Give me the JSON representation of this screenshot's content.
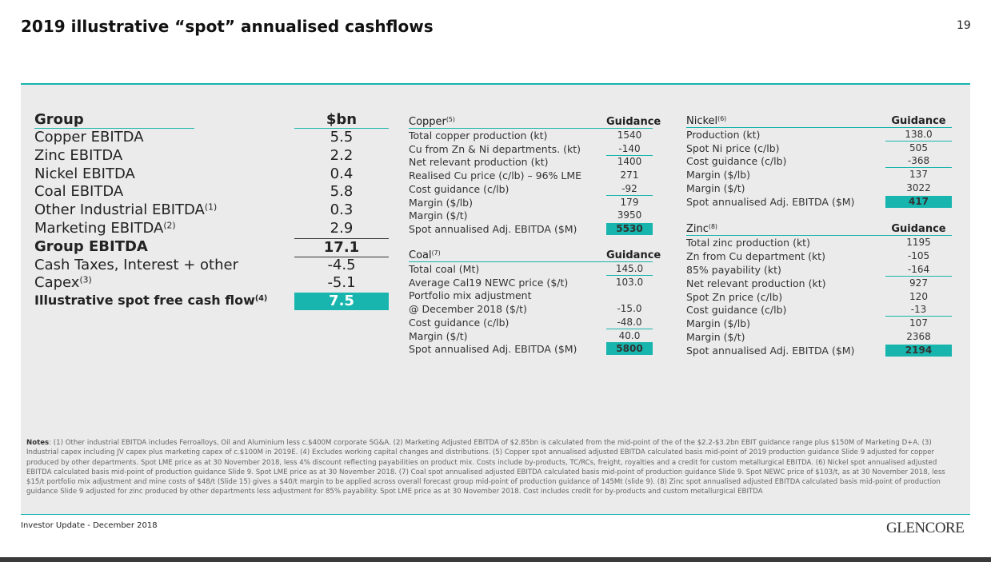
{
  "header": {
    "title": "2019 illustrative “spot” annualised cashflows",
    "page_number": "19"
  },
  "left_table": {
    "header": {
      "label": "Group",
      "value": "$bn"
    },
    "rows": [
      {
        "label": "Copper EBITDA",
        "value": "5.5"
      },
      {
        "label": "Zinc EBITDA",
        "value": "2.2"
      },
      {
        "label": "Nickel EBITDA",
        "value": "0.4"
      },
      {
        "label": "Coal EBITDA",
        "value": "5.8"
      },
      {
        "label": "Other Industrial EBITDA",
        "sup": "(1)",
        "value": "0.3"
      },
      {
        "label": "Marketing EBITDA",
        "sup": "(2)",
        "value": "2.9"
      },
      {
        "label": "Group EBITDA",
        "value": "17.1"
      },
      {
        "label": "Cash Taxes, Interest + other",
        "value": "-4.5"
      },
      {
        "label": "Capex",
        "sup": "(3)",
        "value": "-5.1"
      },
      {
        "label": "Illustrative spot free cash flow",
        "sup": "(4)",
        "value": "7.5"
      }
    ]
  },
  "copper": {
    "title": "Copper",
    "sup": "(5)",
    "column": "Guidance",
    "rows": [
      {
        "label": "Total copper production (kt)",
        "value": "1540"
      },
      {
        "label": "Cu from Zn & Ni departments. (kt)",
        "value": "-140"
      },
      {
        "label": "Net relevant production (kt)",
        "value": "1400"
      },
      {
        "label": "Realised Cu price (c/lb) – 96% LME",
        "value": "271"
      },
      {
        "label": "Cost guidance (c/lb)",
        "value": "-92"
      },
      {
        "label": "Margin ($/lb)",
        "value": "179"
      },
      {
        "label": "Margin ($/t)",
        "value": "3950"
      },
      {
        "label": "Spot annualised Adj. EBITDA ($M)",
        "value": "5530"
      }
    ]
  },
  "coal": {
    "title": "Coal",
    "sup": "(7)",
    "column": "Guidance",
    "rows": [
      {
        "label": "Total coal (Mt)",
        "value": "145.0"
      },
      {
        "label": "Average Cal19 NEWC price ($/t)",
        "value": "103.0"
      },
      {
        "label": "Portfolio mix adjustment"
      },
      {
        "label": "@ December 2018 ($/t)",
        "value": "-15.0"
      },
      {
        "label": "Cost guidance (c/lb)",
        "value": "-48.0"
      },
      {
        "label": "Margin ($/t)",
        "value": "40.0"
      },
      {
        "label": "Spot annualised Adj. EBITDA ($M)",
        "value": "5800"
      }
    ]
  },
  "nickel": {
    "title": "Nickel",
    "sup": "(6)",
    "column": "Guidance",
    "rows": [
      {
        "label": "Production (kt)",
        "value": "138.0"
      },
      {
        "label": "Spot Ni price (c/lb)",
        "value": "505"
      },
      {
        "label": "Cost guidance (c/lb)",
        "value": "-368"
      },
      {
        "label": "Margin ($/lb)",
        "value": "137"
      },
      {
        "label": "Margin ($/t)",
        "value": "3022"
      },
      {
        "label": "Spot annualised Adj. EBITDA ($M)",
        "value": "417"
      }
    ]
  },
  "zinc": {
    "title": "Zinc",
    "sup": "(8)",
    "column": "Guidance",
    "rows": [
      {
        "label": "Total zinc production (kt)",
        "value": "1195"
      },
      {
        "label": "Zn from Cu department (kt)",
        "value": "-105"
      },
      {
        "label": "85% payability (kt)",
        "value": "-164"
      },
      {
        "label": "Net relevant production (kt)",
        "value": "927"
      },
      {
        "label": "Spot Zn price (c/lb)",
        "value": "120"
      },
      {
        "label": "Cost guidance (c/lb)",
        "value": "-13"
      },
      {
        "label": "Margin ($/lb)",
        "value": "107"
      },
      {
        "label": "Margin ($/t)",
        "value": "2368"
      },
      {
        "label": "Spot annualised Adj. EBITDA ($M)",
        "value": "2194"
      }
    ]
  },
  "notes": {
    "label": "Notes",
    "text": ": (1) Other industrial EBITDA includes Ferroalloys, Oil and Aluminium less c.$400M corporate SG&A. (2) Marketing Adjusted EBITDA of $2.85bn is calculated from the mid-point of the of the $2.2-$3.2bn EBIT guidance range plus $150M of Marketing D+A. (3) Industrial capex including JV capex plus marketing capex of c.$100M in 2019E. (4) Excludes working capital changes and distributions. (5) Copper spot annualised adjusted EBITDA calculated basis mid-point of 2019 production guidance Slide 9 adjusted for copper produced by other departments. Spot LME price as at 30 November 2018, less 4% discount reflecting payabilities on product mix. Costs include by-products, TC/RCs, freight, royalties and a credit for custom metallurgical EBITDA. (6) Nickel spot annualised adjusted EBITDA calculated basis mid-point of production guidance Slide 9. Spot LME price as at 30 November 2018. (7) Coal spot annualised adjusted EBITDA calculated basis mid-point of production guidance Slide 9. Spot NEWC price of $103/t, as at 30 November 2018, less $15/t portfolio mix adjustment and mine costs of $48/t (Slide 15) gives a $40/t margin to be applied across overall forecast group mid-point of production guidance of 145Mt (slide 9). (8) Zinc spot annualised adjusted EBITDA calculated basis mid-point of production guidance Slide 9 adjusted for zinc produced by other departments less adjustment for 85% payability.  Spot LME price as at 30 November 2018. Cost includes credit for by-products and custom metallurgical EBITDA"
  },
  "footer": {
    "text": "Investor Update - December 2018",
    "logo": "GLENCORE"
  }
}
